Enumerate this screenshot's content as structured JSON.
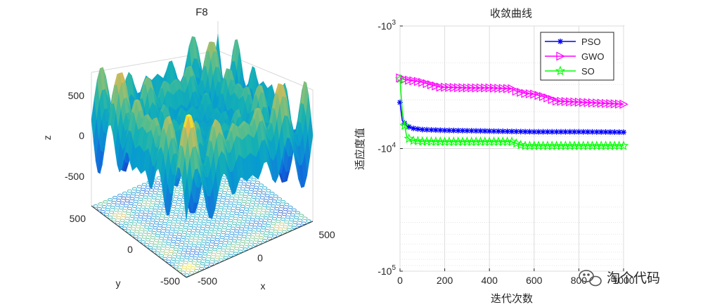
{
  "chart_data": [
    {
      "type": "surface3d",
      "title": "F8",
      "xlabel": "x",
      "ylabel": "y",
      "zlabel": "z",
      "xlim": [
        -500,
        500
      ],
      "ylim": [
        -500,
        500
      ],
      "zlim": [
        -800,
        800
      ],
      "x_ticks": [
        "-500",
        "0",
        "500"
      ],
      "y_ticks": [
        "-500",
        "0",
        "500"
      ],
      "z_ticks": [
        "500",
        "0",
        "-500"
      ],
      "function": "z = -x*sin(sqrt(|x|)) - y*sin(sqrt(|y|))",
      "colormap": "parula",
      "contour_projection": true
    },
    {
      "type": "line",
      "title": "收敛曲线",
      "xlabel": "迭代次数",
      "ylabel": "适应度值",
      "yscale": "log-negative",
      "xlim": [
        0,
        1000
      ],
      "x_ticks": [
        "0",
        "200",
        "400",
        "600",
        "800",
        "1000"
      ],
      "y_ticks": [
        {
          "base": "-10",
          "exp": "3"
        },
        {
          "base": "-10",
          "exp": "4"
        },
        {
          "base": "-10",
          "exp": "5"
        }
      ],
      "ylim_magnitude": [
        1000,
        100000
      ],
      "grid": true,
      "legend_position": "top-right",
      "series": [
        {
          "name": "PSO",
          "color": "#0000ff",
          "marker": "asterisk",
          "x": [
            0,
            10,
            30,
            50,
            100,
            150,
            200,
            300,
            400,
            500,
            600,
            700,
            800,
            900,
            1000
          ],
          "y": [
            -4200,
            -5900,
            -6500,
            -6800,
            -7000,
            -7050,
            -7100,
            -7150,
            -7200,
            -7250,
            -7300,
            -7300,
            -7300,
            -7320,
            -7350
          ]
        },
        {
          "name": "GWO",
          "color": "#ff00ff",
          "marker": "triangle-right",
          "x": [
            0,
            10,
            30,
            60,
            90,
            120,
            150,
            180,
            300,
            400,
            500,
            520,
            560,
            600,
            650,
            700,
            1000
          ],
          "y": [
            -2650,
            -2700,
            -2750,
            -2800,
            -2850,
            -2950,
            -3050,
            -3150,
            -3200,
            -3200,
            -3250,
            -3400,
            -3550,
            -3600,
            -3800,
            -4100,
            -4350
          ]
        },
        {
          "name": "SO",
          "color": "#00ff00",
          "marker": "star",
          "x": [
            0,
            10,
            30,
            50,
            100,
            200,
            300,
            400,
            500,
            550,
            600,
            700,
            800,
            900,
            1000
          ],
          "y": [
            -2700,
            -5000,
            -8000,
            -8600,
            -8750,
            -8800,
            -8800,
            -8800,
            -8800,
            -9500,
            -9500,
            -9500,
            -9500,
            -9500,
            -9500
          ]
        }
      ]
    }
  ],
  "watermark": {
    "text": "淘个代码"
  }
}
